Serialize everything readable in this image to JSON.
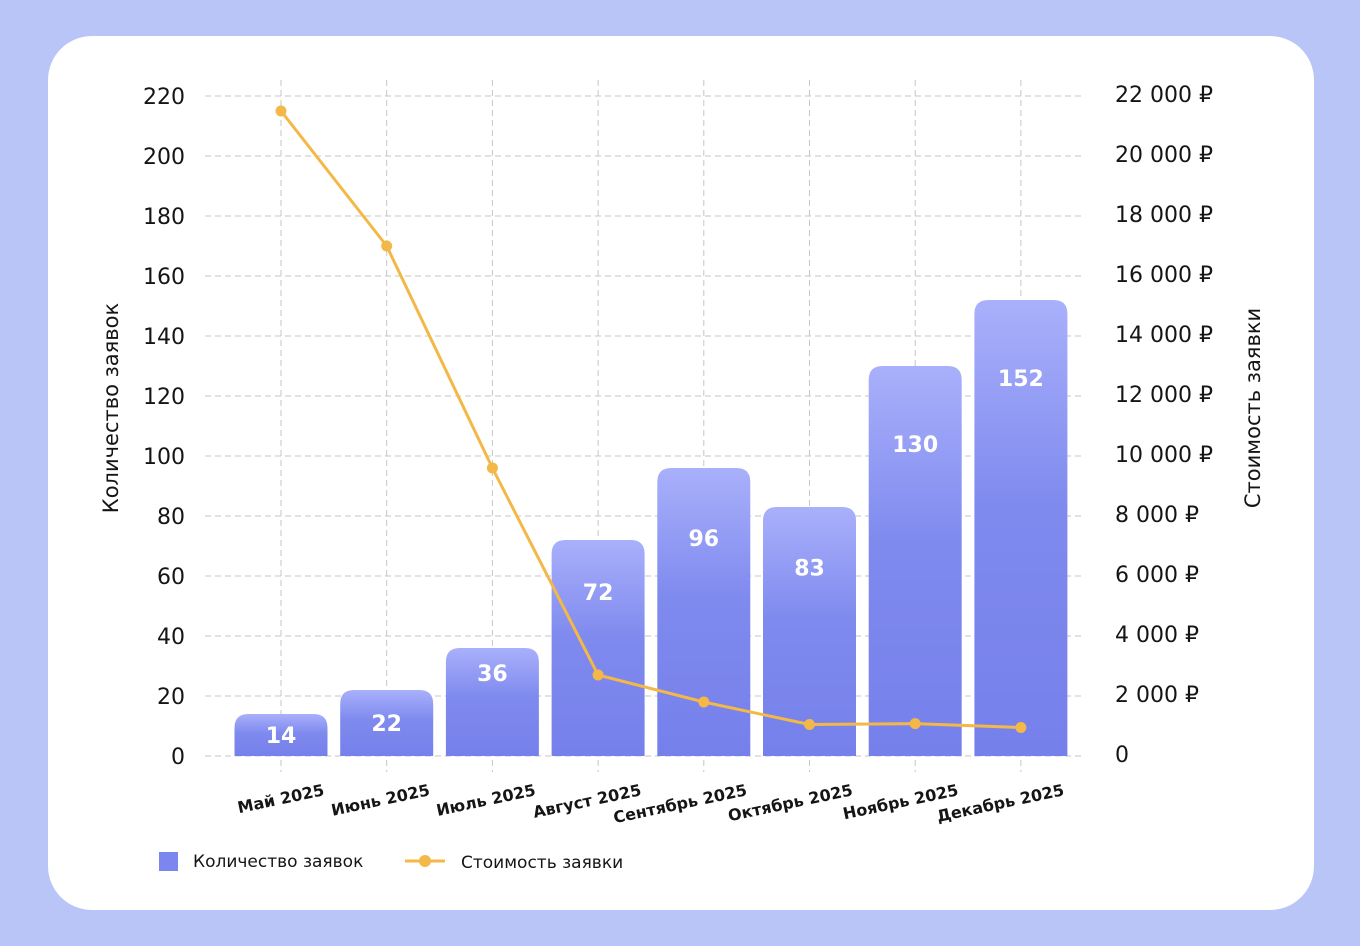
{
  "chart_data": {
    "type": "bar",
    "categories": [
      "Май 2025",
      "Июнь 2025",
      "Июль 2025",
      "Август 2025",
      "Сентябрь 2025",
      "Октябрь 2025",
      "Ноябрь 2025",
      "Декабрь 2025"
    ],
    "series": [
      {
        "name": "Количество заявок",
        "type": "bar",
        "axis": "left",
        "color": "#7b86ee",
        "values": [
          14,
          22,
          36,
          72,
          96,
          83,
          130,
          152
        ]
      },
      {
        "name": "Стоимость заявки",
        "type": "line",
        "axis": "right",
        "color": "#f3b847",
        "values": [
          21500,
          17000,
          9600,
          2700,
          1800,
          1050,
          1080,
          950
        ]
      }
    ],
    "ylabel": "Количество заявок",
    "ylabel_right": "Стоимость заявки",
    "ylim": [
      0,
      220
    ],
    "ylim_right": [
      0,
      22000
    ],
    "yticks": [
      "0",
      "20",
      "40",
      "60",
      "80",
      "100",
      "120",
      "140",
      "160",
      "180",
      "200",
      "220"
    ],
    "yticks_right": [
      "0",
      "2 000 ₽",
      "4 000 ₽",
      "6 000 ₽",
      "8 000 ₽",
      "10 000 ₽",
      "12 000 ₽",
      "14 000 ₽",
      "16 000 ₽",
      "18 000 ₽",
      "20 000 ₽",
      "22 000 ₽"
    ],
    "bar_labels": [
      "14",
      "22",
      "36",
      "72",
      "96",
      "83",
      "130",
      "152"
    ],
    "grid": true,
    "legend": "bottom-left"
  }
}
